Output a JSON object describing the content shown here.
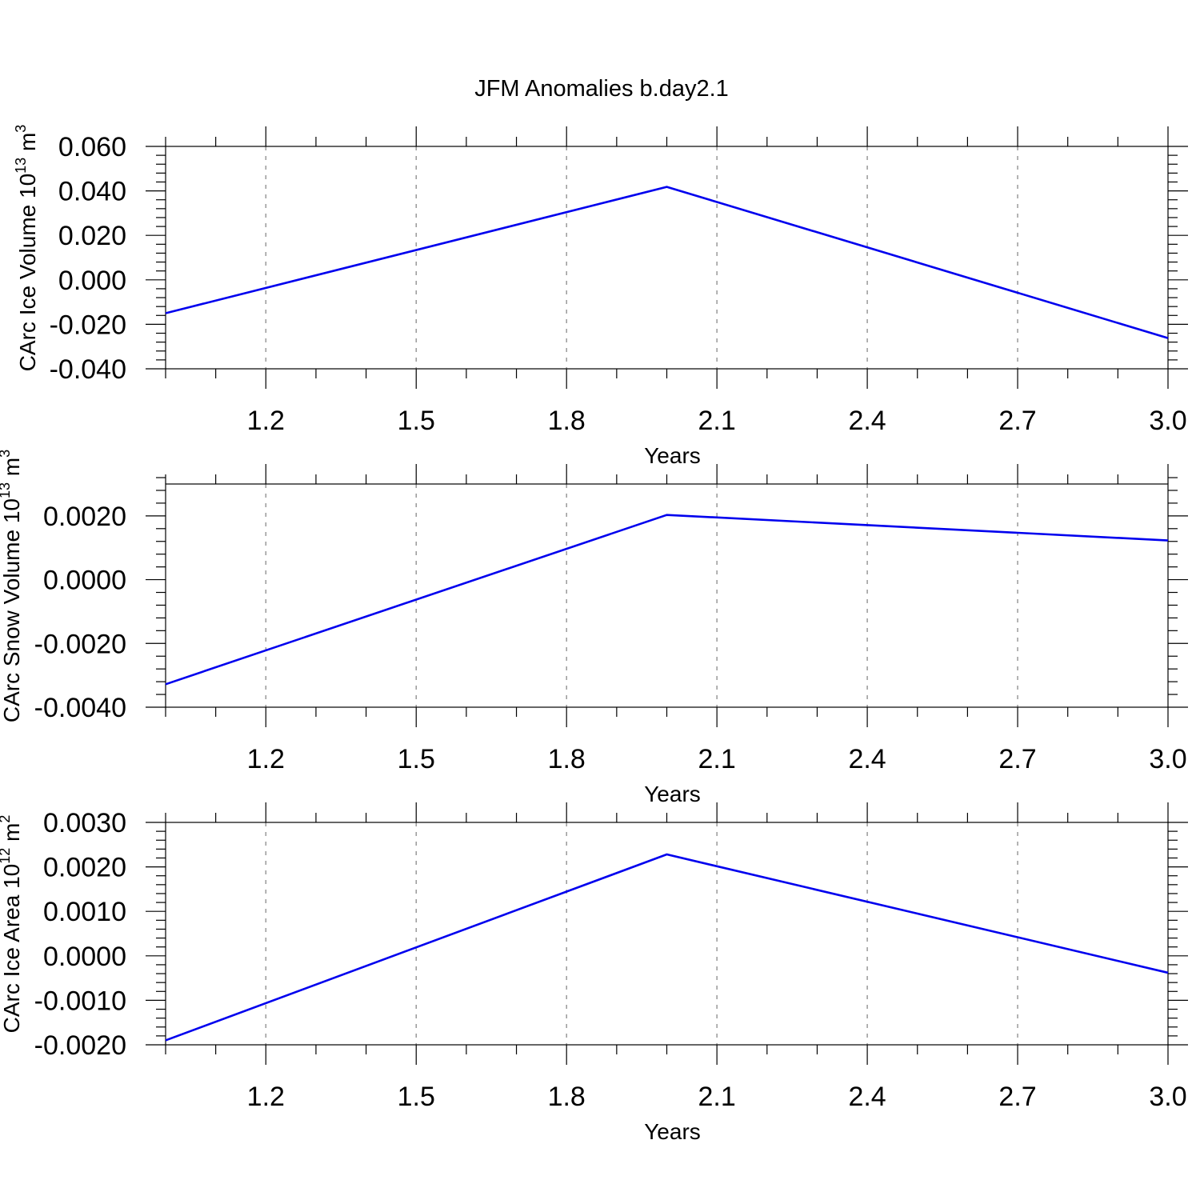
{
  "title": "JFM Anomalies b.day2.1",
  "colors": {
    "series": "#0000ee",
    "grid": "#999999",
    "axis": "#000000"
  },
  "chart_data": [
    {
      "type": "line",
      "xlabel": "Years",
      "ylabel": "CArc Ice Volume 10",
      "ylabel_exp": "13",
      "ylabel_unit": " m",
      "ylabel_unit_exp": "3",
      "xlim": [
        1.0,
        3.0
      ],
      "ylim": [
        -0.04,
        0.06
      ],
      "x_ticks": [
        1.2,
        1.5,
        1.8,
        2.1,
        2.4,
        2.7,
        3.0
      ],
      "x_tick_labels": [
        "1.2",
        "1.5",
        "1.8",
        "2.1",
        "2.4",
        "2.7",
        "3.0"
      ],
      "x_minor_step": 0.1,
      "y_ticks": [
        -0.04,
        -0.02,
        0.0,
        0.02,
        0.04,
        0.06
      ],
      "y_tick_labels": [
        "-0.040",
        "-0.020",
        "0.000",
        "0.020",
        "0.040",
        "0.060"
      ],
      "y_minor_step": 0.004,
      "grid_x": true,
      "series": [
        {
          "x": [
            1.0,
            2.0,
            3.0
          ],
          "y": [
            -0.015,
            0.0418,
            -0.0262
          ]
        }
      ]
    },
    {
      "type": "line",
      "xlabel": "Years",
      "ylabel": "CArc Snow Volume 10",
      "ylabel_exp": "13",
      "ylabel_unit": " m",
      "ylabel_unit_exp": "3",
      "xlim": [
        1.0,
        3.0
      ],
      "ylim": [
        -0.004,
        0.003
      ],
      "x_ticks": [
        1.2,
        1.5,
        1.8,
        2.1,
        2.4,
        2.7,
        3.0
      ],
      "x_tick_labels": [
        "1.2",
        "1.5",
        "1.8",
        "2.1",
        "2.4",
        "2.7",
        "3.0"
      ],
      "x_minor_step": 0.1,
      "y_ticks": [
        -0.004,
        -0.002,
        0.0,
        0.002
      ],
      "y_tick_labels": [
        "-0.0040",
        "-0.0020",
        "0.0000",
        "0.0020"
      ],
      "y_minor_step": 0.0004,
      "grid_x": true,
      "series": [
        {
          "x": [
            1.0,
            2.0,
            3.0
          ],
          "y": [
            -0.00328,
            0.00203,
            0.00123
          ]
        }
      ]
    },
    {
      "type": "line",
      "xlabel": "Years",
      "ylabel": "CArc Ice Area 10",
      "ylabel_exp": "12",
      "ylabel_unit": " m",
      "ylabel_unit_exp": "2",
      "xlim": [
        1.0,
        3.0
      ],
      "ylim": [
        -0.002,
        0.003
      ],
      "x_ticks": [
        1.2,
        1.5,
        1.8,
        2.1,
        2.4,
        2.7,
        3.0
      ],
      "x_tick_labels": [
        "1.2",
        "1.5",
        "1.8",
        "2.1",
        "2.4",
        "2.7",
        "3.0"
      ],
      "x_minor_step": 0.1,
      "y_ticks": [
        -0.002,
        -0.001,
        0.0,
        0.001,
        0.002,
        0.003
      ],
      "y_tick_labels": [
        "-0.0020",
        "-0.0010",
        "0.0000",
        "0.0010",
        "0.0020",
        "0.0030"
      ],
      "y_minor_step": 0.0002,
      "grid_x": true,
      "series": [
        {
          "x": [
            1.0,
            2.0,
            3.0
          ],
          "y": [
            -0.0019,
            0.00228,
            -0.00038
          ]
        }
      ]
    }
  ]
}
